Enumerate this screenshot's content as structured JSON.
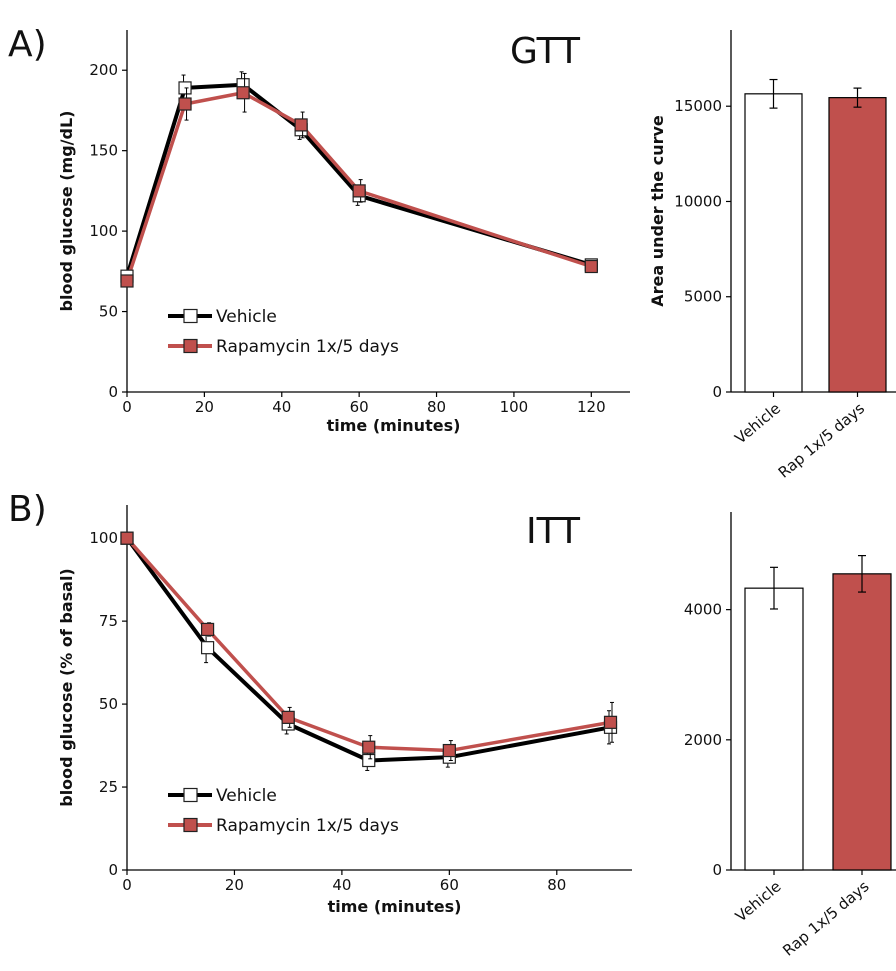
{
  "panels": [
    {
      "label": "A)"
    },
    {
      "label": "B)"
    }
  ],
  "colors": {
    "vehicle_line": "#000000",
    "vehicle_fill": "#ffffff",
    "rapamycin": "#c0504d",
    "axis": "#000000"
  },
  "chart_data": [
    {
      "type": "line",
      "title": "GTT",
      "xlabel": "time (minutes)",
      "ylabel": "blood glucose (mg/dL)",
      "xlim": [
        0,
        130
      ],
      "ylim": [
        0,
        225
      ],
      "x_ticks": [
        0,
        20,
        40,
        60,
        80,
        100,
        120
      ],
      "y_ticks": [
        0,
        50,
        100,
        150,
        200
      ],
      "legend": "lower-left",
      "grid": false,
      "series": [
        {
          "name": "Vehicle",
          "x": [
            0,
            15,
            30,
            45,
            60,
            120
          ],
          "y": [
            72,
            189,
            191,
            163,
            122,
            79
          ],
          "error": [
            3,
            8,
            8,
            6,
            6,
            3
          ]
        },
        {
          "name": "Rapamycin 1x/5 days",
          "x": [
            0,
            15,
            30,
            45,
            60,
            120
          ],
          "y": [
            69,
            179,
            186,
            166,
            125,
            78
          ],
          "error": [
            3,
            10,
            12,
            8,
            7,
            3
          ]
        }
      ]
    },
    {
      "type": "bar",
      "categories": [
        "Vehicle",
        "Rap 1x/5 days"
      ],
      "values": [
        15650,
        15450
      ],
      "errors": [
        750,
        500
      ],
      "title": "",
      "xlabel": "",
      "ylabel": "Area under the curve",
      "ylim": [
        0,
        19000
      ],
      "y_ticks": [
        0,
        5000,
        10000,
        15000
      ],
      "grid": false
    },
    {
      "type": "line",
      "title": "ITT",
      "xlabel": "time (minutes)",
      "ylabel": "blood glucose (% of basal)",
      "xlim": [
        0,
        94
      ],
      "ylim": [
        0,
        110
      ],
      "x_ticks": [
        0,
        20,
        40,
        60,
        80
      ],
      "y_ticks": [
        0,
        25,
        50,
        75,
        100
      ],
      "legend": "lower-left",
      "grid": false,
      "series": [
        {
          "name": "Vehicle",
          "x": [
            0,
            15,
            30,
            45,
            60,
            90
          ],
          "y": [
            100,
            67,
            44,
            33,
            34,
            43
          ],
          "error": [
            0,
            4.5,
            3,
            3,
            3,
            5
          ]
        },
        {
          "name": "Rapamycin 1x/5 days",
          "x": [
            0,
            15,
            30,
            45,
            60,
            90
          ],
          "y": [
            100,
            72.5,
            46,
            37,
            36,
            44.5
          ],
          "error": [
            0,
            2,
            3,
            3.5,
            3,
            6
          ]
        }
      ]
    },
    {
      "type": "bar",
      "categories": [
        "Vehicle",
        "Rap 1x/5 days"
      ],
      "values": [
        4330,
        4550
      ],
      "errors": [
        320,
        280
      ],
      "title": "",
      "xlabel": "",
      "ylabel": "",
      "ylim": [
        0,
        5500
      ],
      "y_ticks": [
        0,
        2000,
        4000
      ],
      "grid": false
    }
  ]
}
